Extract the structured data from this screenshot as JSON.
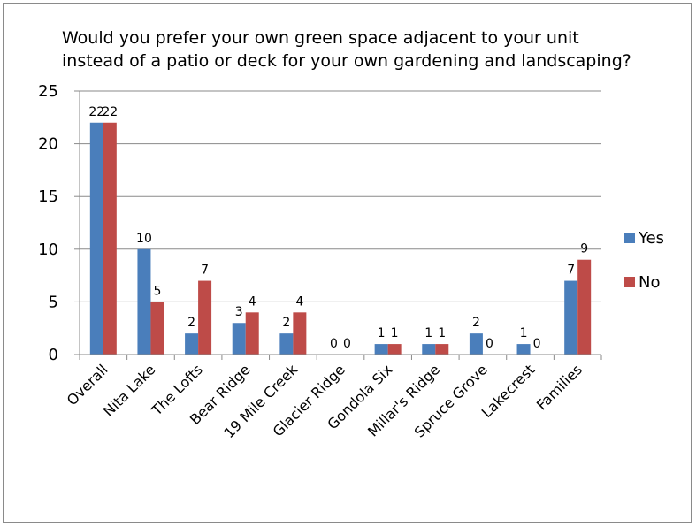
{
  "chart_data": {
    "type": "bar",
    "title": "Would you prefer your own green space adjacent to your unit\ninstead of a patio or deck for your own gardening and landscaping?",
    "categories": [
      "Overall",
      "Nita Lake",
      "The Lofts",
      "Bear Ridge",
      "19 Mile Creek",
      "Glacier Ridge",
      "Gondola Six",
      "Millar's Ridge",
      "Spruce Grove",
      "Lakecrest",
      "Families"
    ],
    "series": [
      {
        "name": "Yes",
        "color": "#4a7ebb",
        "values": [
          22,
          10,
          2,
          3,
          2,
          0,
          1,
          1,
          2,
          1,
          7
        ]
      },
      {
        "name": "No",
        "color": "#be4b48",
        "values": [
          22,
          5,
          7,
          4,
          4,
          0,
          1,
          1,
          0,
          0,
          9
        ]
      }
    ],
    "ylim": [
      0,
      25
    ],
    "yticks": [
      0,
      5,
      10,
      15,
      20,
      25
    ],
    "grid": true,
    "legend_position": "right",
    "data_labels": true
  }
}
